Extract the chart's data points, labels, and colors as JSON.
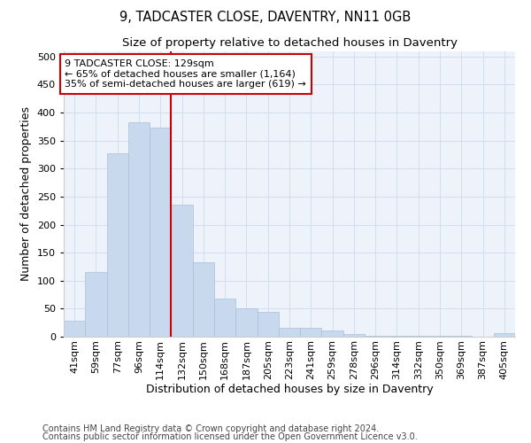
{
  "title": "9, TADCASTER CLOSE, DAVENTRY, NN11 0GB",
  "subtitle": "Size of property relative to detached houses in Daventry",
  "xlabel": "Distribution of detached houses by size in Daventry",
  "ylabel": "Number of detached properties",
  "categories": [
    "41sqm",
    "59sqm",
    "77sqm",
    "96sqm",
    "114sqm",
    "132sqm",
    "150sqm",
    "168sqm",
    "187sqm",
    "205sqm",
    "223sqm",
    "241sqm",
    "259sqm",
    "278sqm",
    "296sqm",
    "314sqm",
    "332sqm",
    "350sqm",
    "369sqm",
    "387sqm",
    "405sqm"
  ],
  "values": [
    28,
    116,
    328,
    383,
    373,
    235,
    133,
    68,
    50,
    44,
    16,
    16,
    11,
    5,
    2,
    1,
    1,
    1,
    1,
    0,
    7
  ],
  "bar_color": "#c8d9ed",
  "bar_edge_color": "#a8c0dc",
  "vline_x_index": 5,
  "vline_color": "#cc0000",
  "annotation_text": "9 TADCASTER CLOSE: 129sqm\n← 65% of detached houses are smaller (1,164)\n35% of semi-detached houses are larger (619) →",
  "annotation_box_edge_color": "#cc0000",
  "ylim": [
    0,
    510
  ],
  "yticks": [
    0,
    50,
    100,
    150,
    200,
    250,
    300,
    350,
    400,
    450,
    500
  ],
  "grid_color": "#d0dff0",
  "background_color": "#eef3fb",
  "footer_line1": "Contains HM Land Registry data © Crown copyright and database right 2024.",
  "footer_line2": "Contains public sector information licensed under the Open Government Licence v3.0.",
  "title_fontsize": 10.5,
  "subtitle_fontsize": 9.5,
  "axis_label_fontsize": 9,
  "tick_label_fontsize": 8,
  "annotation_fontsize": 8,
  "footer_fontsize": 7
}
